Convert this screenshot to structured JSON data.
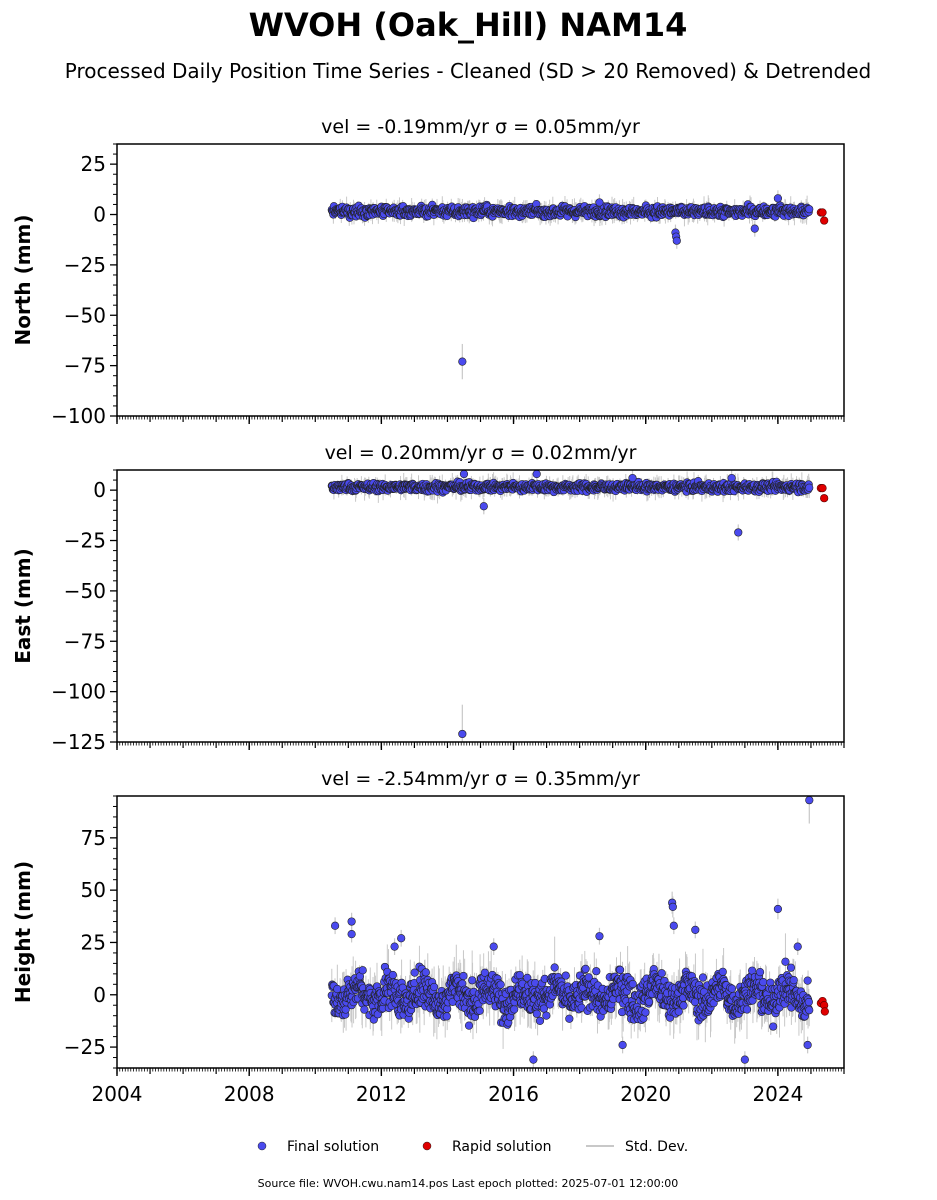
{
  "figure": {
    "title": "WVOH (Oak_Hill) NAM14",
    "subtitle": "Processed Daily Position Time Series - Cleaned (SD > 20 Removed) & Detrended",
    "footer": "Source file: WVOH.cwu.nam14.pos  Last epoch plotted: 2025-07-01 12:00:00",
    "colors": {
      "final": "#4a4aee",
      "rapid": "#e00000",
      "stddev": "#c8c8c8",
      "edge": "#222222"
    }
  },
  "legend": {
    "placement": "bottom-center",
    "items": [
      {
        "label": "Final solution",
        "marker": "circle",
        "color": "#4a4aee"
      },
      {
        "label": "Rapid solution",
        "marker": "circle",
        "color": "#e00000"
      },
      {
        "label": "Std. Dev.",
        "marker": "line",
        "color": "#c8c8c8"
      }
    ]
  },
  "chart_data": [
    {
      "type": "scatter",
      "title": "vel = -0.19mm/yr   σ = 0.05mm/yr",
      "ylabel": "North (mm)",
      "xlim": [
        2004,
        2026
      ],
      "ylim": [
        -100,
        35
      ],
      "yticks": [
        25,
        0,
        -25,
        -50,
        -75,
        -100
      ],
      "xticks": [
        2004,
        2008,
        2012,
        2016,
        2020,
        2024
      ],
      "xtick_labels_shown": false,
      "final_span": [
        2010.5,
        2024.95
      ],
      "final_band": {
        "center": 1.5,
        "spread": 2.5
      },
      "outliers": [
        {
          "x": 2014.45,
          "y": -73
        },
        {
          "x": 2020.9,
          "y": -9
        },
        {
          "x": 2020.92,
          "y": -11
        },
        {
          "x": 2020.94,
          "y": -13
        },
        {
          "x": 2023.3,
          "y": -7
        },
        {
          "x": 2024.0,
          "y": 8
        },
        {
          "x": 2018.6,
          "y": 6
        }
      ],
      "rapid": [
        {
          "x": 2025.3,
          "y": 1
        },
        {
          "x": 2025.35,
          "y": 1
        },
        {
          "x": 2025.4,
          "y": -3
        }
      ]
    },
    {
      "type": "scatter",
      "title": "vel = 0.20mm/yr   σ = 0.02mm/yr",
      "ylabel": "East (mm)",
      "xlim": [
        2004,
        2026
      ],
      "ylim": [
        -125,
        10
      ],
      "yticks": [
        0,
        -25,
        -50,
        -75,
        -100,
        -125
      ],
      "xticks": [
        2004,
        2008,
        2012,
        2016,
        2020,
        2024
      ],
      "xtick_labels_shown": false,
      "final_span": [
        2010.5,
        2024.95
      ],
      "final_band": {
        "center": 1.5,
        "spread": 2.0
      },
      "outliers": [
        {
          "x": 2014.45,
          "y": -121
        },
        {
          "x": 2022.8,
          "y": -21
        },
        {
          "x": 2015.1,
          "y": -8
        },
        {
          "x": 2014.5,
          "y": 8
        },
        {
          "x": 2016.7,
          "y": 8
        },
        {
          "x": 2019.6,
          "y": 6
        },
        {
          "x": 2022.6,
          "y": 6
        }
      ],
      "rapid": [
        {
          "x": 2025.3,
          "y": 1
        },
        {
          "x": 2025.35,
          "y": 1
        },
        {
          "x": 2025.4,
          "y": -4
        }
      ]
    },
    {
      "type": "scatter",
      "title": "vel = -2.54mm/yr   σ = 0.35mm/yr",
      "ylabel": "Height (mm)",
      "xlim": [
        2004,
        2026
      ],
      "ylim": [
        -35,
        95
      ],
      "yticks": [
        75,
        50,
        25,
        0,
        -25
      ],
      "xticks": [
        2004,
        2008,
        2012,
        2016,
        2020,
        2024
      ],
      "xtick_labels_shown": true,
      "final_span": [
        2010.5,
        2024.95
      ],
      "final_band": {
        "center": 0,
        "spread": 9
      },
      "outliers": [
        {
          "x": 2010.6,
          "y": 33
        },
        {
          "x": 2011.1,
          "y": 35
        },
        {
          "x": 2011.1,
          "y": 29
        },
        {
          "x": 2012.6,
          "y": 27
        },
        {
          "x": 2018.6,
          "y": 28
        },
        {
          "x": 2020.8,
          "y": 44
        },
        {
          "x": 2020.82,
          "y": 42
        },
        {
          "x": 2020.85,
          "y": 33
        },
        {
          "x": 2021.5,
          "y": 31
        },
        {
          "x": 2024.0,
          "y": 41
        },
        {
          "x": 2024.95,
          "y": 93
        },
        {
          "x": 2016.6,
          "y": -31
        },
        {
          "x": 2023.0,
          "y": -31
        },
        {
          "x": 2024.9,
          "y": -24
        },
        {
          "x": 2015.4,
          "y": 23
        },
        {
          "x": 2012.4,
          "y": 23
        },
        {
          "x": 2019.3,
          "y": -24
        },
        {
          "x": 2024.6,
          "y": 23
        }
      ],
      "rapid": [
        {
          "x": 2025.3,
          "y": -4
        },
        {
          "x": 2025.35,
          "y": -3
        },
        {
          "x": 2025.4,
          "y": -5
        },
        {
          "x": 2025.42,
          "y": -8
        }
      ]
    }
  ]
}
